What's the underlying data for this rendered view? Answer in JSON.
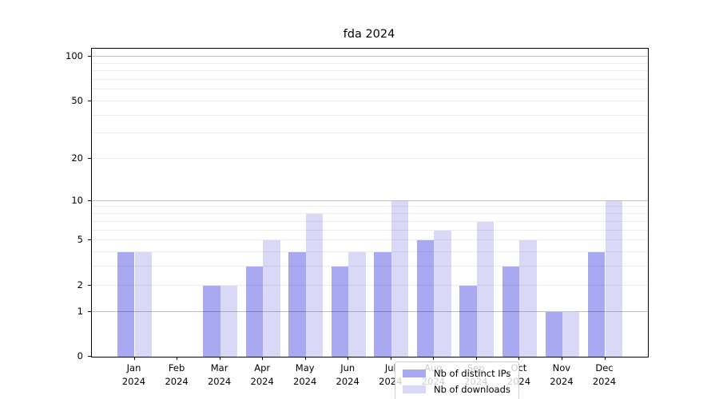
{
  "figure": {
    "title": "fda 2024",
    "background": "#ffffff"
  },
  "chart_data": {
    "type": "bar",
    "title": "fda 2024",
    "categories": [
      "Jan",
      "Feb",
      "Mar",
      "Apr",
      "May",
      "Jun",
      "Jul",
      "Aug",
      "Sep",
      "Oct",
      "Nov",
      "Dec"
    ],
    "x_tick_sublabel": "2024",
    "series": [
      {
        "name": "Nb of distinct IPs",
        "color": "#a9a9f2",
        "values": [
          4,
          0,
          2,
          3,
          4,
          3,
          4,
          5,
          2,
          3,
          1,
          4
        ]
      },
      {
        "name": "Nb of downloads",
        "color": "#d9d9f7",
        "values": [
          4,
          0,
          2,
          5,
          8,
          4,
          10,
          6,
          7,
          5,
          1,
          10
        ]
      }
    ],
    "xlabel": "",
    "ylabel": "",
    "yscale": "log1p",
    "ylim": [
      0,
      100
    ],
    "yticks_labeled": [
      0,
      1,
      2,
      5,
      10,
      20,
      50,
      100
    ],
    "yticks_major": [
      1,
      10,
      100
    ],
    "yticks_minor": [
      2,
      3,
      4,
      5,
      6,
      7,
      8,
      9,
      20,
      30,
      40,
      50,
      60,
      70,
      80,
      90
    ],
    "grid": "horizontal",
    "legend_position": "inside-bottom-center"
  }
}
